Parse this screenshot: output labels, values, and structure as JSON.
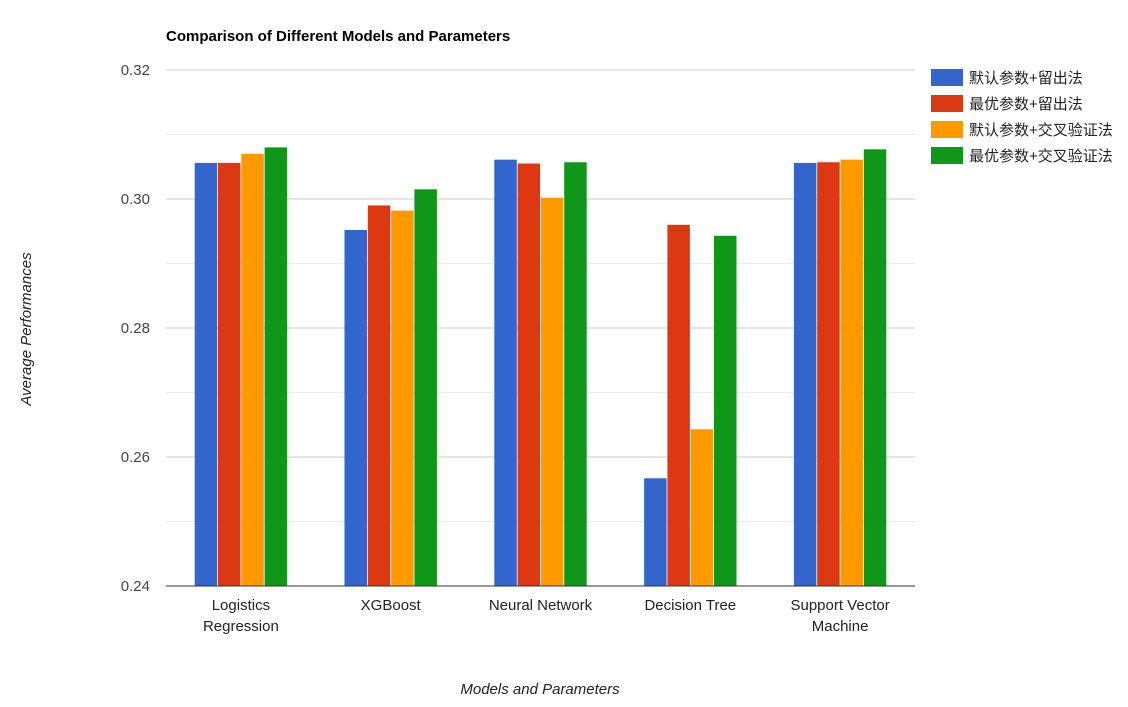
{
  "chart_data": {
    "type": "bar",
    "title": "Comparison of Different Models and Parameters",
    "xlabel": "Models and Parameters",
    "ylabel": "Average Performances",
    "ylim": [
      0.24,
      0.32
    ],
    "yticks": [
      "0.24",
      "0.26",
      "0.28",
      "0.30",
      "0.32"
    ],
    "categories": [
      [
        "Logistics",
        "Regression"
      ],
      [
        "XGBoost"
      ],
      [
        "Neural Network"
      ],
      [
        "Decision Tree"
      ],
      [
        "Support Vector",
        "Machine"
      ]
    ],
    "series": [
      {
        "name": "默认参数+留出法",
        "color": "#3366cc",
        "values": [
          0.3056,
          0.2952,
          0.3061,
          0.2567,
          0.3056
        ]
      },
      {
        "name": "最优参数+留出法",
        "color": "#dc3912",
        "values": [
          0.3056,
          0.299,
          0.3055,
          0.296,
          0.3057
        ]
      },
      {
        "name": "默认参数+交叉验证法",
        "color": "#ff9900",
        "values": [
          0.307,
          0.2982,
          0.3002,
          0.2643,
          0.3061
        ]
      },
      {
        "name": "最优参数+交叉验证法",
        "color": "#109618",
        "values": [
          0.308,
          0.3015,
          0.3057,
          0.2943,
          0.3077
        ]
      }
    ],
    "grid": true,
    "legend_position": "right"
  }
}
